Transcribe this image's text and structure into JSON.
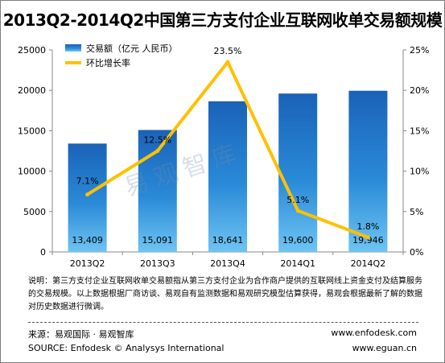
{
  "title": "2013Q2-2014Q2中国第三方支付企业互联网收单交易额规模",
  "watermark": "易观智库",
  "note": "说明：第三方支付企业互联网收单交易额指从第三方支付企业为合作商户提供的互联网线上资金支付及结算服务的交易规模。以上数据根据厂商访谈、易观自有监测数据和易观研究模型估算获得，易观会根据最新了解的数据对历史数据进行微调。",
  "source_cn": "来源：易观国际 · 易观智库",
  "source_en": "SOURCE: Enfodesk © Analysys International",
  "url1": "www.enfodesk.com",
  "url2": "www.eguan.cn",
  "chart_data": {
    "type": "bar",
    "categories": [
      "2013Q2",
      "2013Q3",
      "2013Q4",
      "2014Q1",
      "2014Q2"
    ],
    "series": [
      {
        "name": "交易额（亿元 人民币）",
        "type": "bar",
        "axis": "left",
        "values": [
          13409,
          15091,
          18641,
          19600,
          19946
        ],
        "labels": [
          "13,409",
          "15,091",
          "18,641",
          "19,600",
          "19,946"
        ],
        "color": "#1f6fc8"
      },
      {
        "name": "环比增长率",
        "type": "line",
        "axis": "right",
        "values": [
          7.1,
          12.5,
          23.5,
          5.1,
          1.8
        ],
        "labels": [
          "7.1%",
          "12.5%",
          "23.5%",
          "5.1%",
          "1.8%"
        ],
        "color": "#ffc000"
      }
    ],
    "y_left": {
      "min": 0,
      "max": 25000,
      "ticks": [
        "0",
        "5000",
        "10000",
        "15000",
        "20000",
        "25000"
      ]
    },
    "y_right": {
      "min": 0,
      "max": 25,
      "ticks": [
        "0%",
        "5%",
        "10%",
        "15%",
        "20%",
        "25%"
      ]
    },
    "legend_position": "top-left"
  }
}
